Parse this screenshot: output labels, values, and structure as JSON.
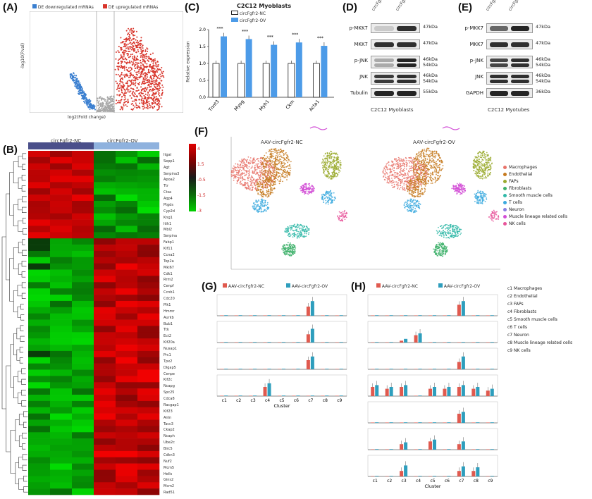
{
  "panel_labels": {
    "A": "(A)",
    "B": "(B)",
    "C": "(C)",
    "D": "(D)",
    "E": "(E)",
    "F": "(F)",
    "G": "(G)",
    "H": "(H)"
  },
  "panelA": {
    "legend_down": "DE downregulated mRNAs",
    "legend_up": "DE upregulated mRNAs",
    "ylabel": "-log10(P.val)",
    "xlabel": "log2(Fold change)",
    "color_down": "#3a7fd0",
    "color_up": "#d8352b"
  },
  "panelB": {
    "group_left": "circFgfr2-NC",
    "group_right": "circFgfr2-OV",
    "scale_labels": [
      "4",
      "1.5",
      "-0.5",
      "-1.5",
      "-3"
    ],
    "genes": [
      "Itgal",
      "Sepp1",
      "Agt",
      "Serpina3",
      "Apoa2",
      "Ttr",
      "Ctsa",
      "Aqp4",
      "Ptgds",
      "Cyp2d",
      "Kng1",
      "Itih1",
      "Mbl2",
      "Serpina",
      "Fabp1",
      "Kif11",
      "Ccna2",
      "Top2a",
      "Mki67",
      "Cdk1",
      "Rrm2",
      "Cenpf",
      "Ccnb1",
      "Cdc20",
      "Plk1",
      "Hmmr",
      "Aurkb",
      "Bub1",
      "Ttk",
      "Ect2",
      "Kif20a",
      "Nusap1",
      "Prc1",
      "Tpx2",
      "Dlgap5",
      "Cenpe",
      "Kif2c",
      "Ncapg",
      "Spc25",
      "Cdca8",
      "Racgap1",
      "Kif23",
      "Anln",
      "Tacc3",
      "Ckap2",
      "Ncaph",
      "Ube2c",
      "Birc5",
      "Cdkn3",
      "Nuf2",
      "Mcm5",
      "Hells",
      "Gins2",
      "Mcm2",
      "Rad51"
    ]
  },
  "panelC": {
    "title": "C2C12 Myoblasts",
    "legend": [
      "circFgfr2-NC",
      "circFgfr2-OV"
    ],
    "ylabel": "Relative expression",
    "colors": [
      "#ffffff",
      "#4c9be8"
    ],
    "yticks": [
      "2.0",
      "1.5",
      "1.0",
      "0.5",
      "0.0"
    ],
    "chart_data": {
      "type": "bar",
      "categories": [
        "Tnnt3",
        "Myog",
        "Myh1",
        "Ckm",
        "Acta1"
      ],
      "series": [
        {
          "name": "circFgfr2-NC",
          "values": [
            1.0,
            1.0,
            1.0,
            1.0,
            1.0
          ]
        },
        {
          "name": "circFgfr2-OV",
          "values": [
            1.8,
            1.72,
            1.55,
            1.62,
            1.52
          ]
        }
      ],
      "ylim": [
        0,
        2.0
      ],
      "sig": [
        "***",
        "***",
        "***",
        "***",
        "***"
      ]
    }
  },
  "panelD": {
    "lanes": [
      "circFgfr2-NC",
      "circFgfr2-OV"
    ],
    "rows": [
      {
        "name": "p-MKK7",
        "kda": "47kDa"
      },
      {
        "name": "MKK7",
        "kda": "47kDa"
      },
      {
        "name": "p-JNK",
        "kda": "46kDa 54kDa"
      },
      {
        "name": "JNK",
        "kda": "46kDa 54kDa"
      },
      {
        "name": "Tubulin",
        "kda": "55kDa"
      }
    ],
    "caption": "C2C12 Myoblasts"
  },
  "panelE": {
    "lanes": [
      "circFgfr2-NC",
      "circFgfr2-OV"
    ],
    "rows": [
      {
        "name": "p-MKK7",
        "kda": "47kDa"
      },
      {
        "name": "MKK7",
        "kda": "47kDa"
      },
      {
        "name": "p-JNK",
        "kda": "46kDa 54kDa"
      },
      {
        "name": "JNK",
        "kda": "46kDa 54kDa"
      },
      {
        "name": "GAPDH",
        "kda": "36kDa"
      }
    ],
    "caption": "C2C12 Myotubes"
  },
  "panelF": {
    "title_left": "AAV-circFgfr2-NC",
    "title_right": "AAV-circFgfr2-OV",
    "legend": [
      {
        "name": "Macrophages",
        "color": "#e8736a"
      },
      {
        "name": "Endothelial",
        "color": "#c67a1e"
      },
      {
        "name": "FAPs",
        "color": "#9aaa2e"
      },
      {
        "name": "Fibroblasts",
        "color": "#3db06a"
      },
      {
        "name": "Smooth muscle cells",
        "color": "#31b8a8"
      },
      {
        "name": "T cells",
        "color": "#3aa9de"
      },
      {
        "name": "Neuron",
        "color": "#8a7fe0"
      },
      {
        "name": "Muscle lineage related cells",
        "color": "#d24fd6"
      },
      {
        "name": "NK cells",
        "color": "#e8559a"
      }
    ]
  },
  "panelG": {
    "legend": [
      "AAV-circFgfr2-NC",
      "AAV-circFgfr2-OV"
    ],
    "colors": [
      "#e05a4f",
      "#2e9ebd"
    ],
    "xlabel": "Cluster",
    "clusters": [
      "c1",
      "c2",
      "c3",
      "c4",
      "c5",
      "c6",
      "c7",
      "c8",
      "c9"
    ],
    "chart_data": {
      "type": "bar",
      "rows": [
        {
          "nc": [
            0.02,
            0.02,
            0.02,
            0.02,
            0.02,
            0.02,
            0.5,
            0.02,
            0.02
          ],
          "ov": [
            0.03,
            0.03,
            0.03,
            0.03,
            0.03,
            0.03,
            0.8,
            0.03,
            0.03
          ]
        },
        {
          "nc": [
            0.02,
            0.02,
            0.02,
            0.02,
            0.02,
            0.02,
            0.45,
            0.02,
            0.02
          ],
          "ov": [
            0.03,
            0.03,
            0.03,
            0.03,
            0.03,
            0.03,
            0.75,
            0.03,
            0.03
          ]
        },
        {
          "nc": [
            0.02,
            0.02,
            0.02,
            0.02,
            0.02,
            0.02,
            0.5,
            0.02,
            0.02
          ],
          "ov": [
            0.03,
            0.03,
            0.03,
            0.03,
            0.03,
            0.03,
            0.7,
            0.03,
            0.03
          ]
        },
        {
          "nc": [
            0.02,
            0.02,
            0.02,
            0.5,
            0.02,
            0.02,
            0.02,
            0.02,
            0.02
          ],
          "ov": [
            0.03,
            0.03,
            0.03,
            0.7,
            0.03,
            0.03,
            0.03,
            0.03,
            0.03
          ]
        }
      ]
    }
  },
  "panelH": {
    "legend": [
      "AAV-circFgfr2-NC",
      "AAV-circFgfr2-OV"
    ],
    "colors": [
      "#e05a4f",
      "#2e9ebd"
    ],
    "xlabel": "Cluster",
    "clusters": [
      "c1",
      "c2",
      "c3",
      "c4",
      "c5",
      "c6",
      "c7",
      "c8",
      "c9"
    ],
    "cluster_legend": [
      "c1 Macrophages",
      "c2 Endothelial",
      "c3 FAPs",
      "c4 Fibroblasts",
      "c5 Smooth muscle cells",
      "c6 T cells",
      "c7 Neuron",
      "c8 Muscle lineage related cells",
      "c9 NK cells"
    ],
    "chart_data": {
      "type": "bar",
      "rows": [
        {
          "nc": [
            0.02,
            0.02,
            0.02,
            0.02,
            0.02,
            0.02,
            0.6,
            0.02,
            0.02
          ],
          "ov": [
            0.03,
            0.03,
            0.03,
            0.03,
            0.03,
            0.03,
            0.8,
            0.03,
            0.03
          ]
        },
        {
          "nc": [
            0.02,
            0.02,
            0.1,
            0.4,
            0.02,
            0.02,
            0.02,
            0.02,
            0.02
          ],
          "ov": [
            0.03,
            0.03,
            0.2,
            0.5,
            0.03,
            0.03,
            0.03,
            0.03,
            0.03
          ]
        },
        {
          "nc": [
            0.02,
            0.02,
            0.02,
            0.02,
            0.02,
            0.02,
            0.4,
            0.02,
            0.02
          ],
          "ov": [
            0.03,
            0.03,
            0.03,
            0.03,
            0.03,
            0.03,
            0.7,
            0.03,
            0.03
          ]
        },
        {
          "nc": [
            0.5,
            0.4,
            0.5,
            0.02,
            0.4,
            0.4,
            0.5,
            0.4,
            0.3
          ],
          "ov": [
            0.6,
            0.5,
            0.6,
            0.03,
            0.5,
            0.5,
            0.6,
            0.5,
            0.4
          ]
        },
        {
          "nc": [
            0.02,
            0.02,
            0.02,
            0.02,
            0.02,
            0.02,
            0.5,
            0.02,
            0.02
          ],
          "ov": [
            0.03,
            0.03,
            0.03,
            0.03,
            0.03,
            0.03,
            0.6,
            0.03,
            0.03
          ]
        },
        {
          "nc": [
            0.02,
            0.02,
            0.3,
            0.02,
            0.45,
            0.02,
            0.3,
            0.02,
            0.02
          ],
          "ov": [
            0.03,
            0.03,
            0.4,
            0.03,
            0.55,
            0.03,
            0.45,
            0.03,
            0.03
          ]
        },
        {
          "nc": [
            0.02,
            0.02,
            0.3,
            0.02,
            0.02,
            0.02,
            0.3,
            0.3,
            0.02
          ],
          "ov": [
            0.03,
            0.03,
            0.6,
            0.03,
            0.03,
            0.03,
            0.55,
            0.5,
            0.03
          ]
        }
      ]
    }
  }
}
